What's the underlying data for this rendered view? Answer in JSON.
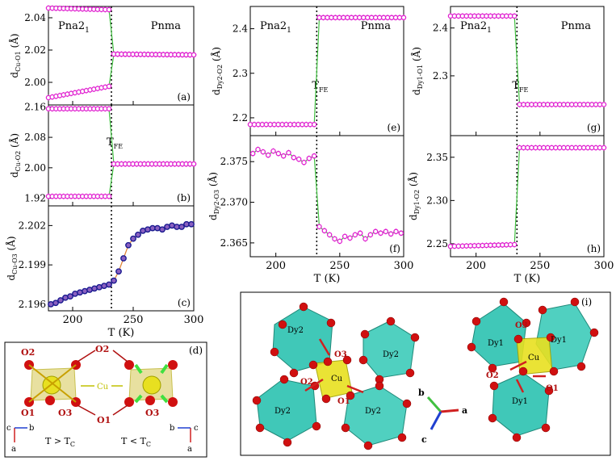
{
  "colors": {
    "magenta": "#e020d0",
    "lowOpen": "#d020c0",
    "green": "#40c040",
    "navy": "#1a1a90",
    "orange": "#e08030",
    "teal": "#40c8b8",
    "yellow": "#e8e020",
    "red": "#cc1010",
    "axis": "#000000"
  },
  "chart_data": [
    {
      "id": "a",
      "type": "scatter",
      "panel_label": "(a)",
      "ylabel_main": "d",
      "ylabel_sub": "Cu-O1",
      "ylabel_unit": " (Å)",
      "xlim": [
        180,
        300
      ],
      "ylim": [
        1.986,
        2.047
      ],
      "yticks": [
        "2.04",
        "2.02",
        "2.00"
      ],
      "ytick_values": [
        2.04,
        2.02,
        2.0
      ],
      "phase_left": "Pna2",
      "phase_left_sub": "1",
      "phase_right": "Pnma",
      "transition_T": 232,
      "series": [
        {
          "name": "upper",
          "style": "open",
          "segments": [
            {
              "x0": 180,
              "x1": 230,
              "y0": 2.046,
              "y1": 2.045
            },
            {
              "x0": 234,
              "x1": 300,
              "y0": 2.0175,
              "y1": 2.017
            }
          ]
        },
        {
          "name": "lower",
          "style": "open",
          "segments": [
            {
              "x0": 180,
              "x1": 230,
              "y0": 1.9905,
              "y1": 1.9975
            },
            {
              "x0": 234,
              "x1": 300,
              "y0": 2.0175,
              "y1": 2.017
            }
          ]
        }
      ]
    },
    {
      "id": "b",
      "type": "scatter",
      "panel_label": "(b)",
      "ylabel_main": "d",
      "ylabel_sub": "Cu-O2",
      "ylabel_unit": " (Å)",
      "xlim": [
        180,
        300
      ],
      "ylim": [
        1.9,
        2.165
      ],
      "yticks": [
        "2.16",
        "2.08",
        "2.00",
        "1.92"
      ],
      "ytick_values": [
        2.16,
        2.08,
        2.0,
        1.92
      ],
      "annotation": "T",
      "annotation_sub": "FE",
      "transition_T": 232,
      "series": [
        {
          "name": "upper",
          "style": "open",
          "segments": [
            {
              "x0": 180,
              "x1": 230,
              "y0": 2.155,
              "y1": 2.155
            },
            {
              "x0": 234,
              "x1": 300,
              "y0": 2.01,
              "y1": 2.01
            }
          ]
        },
        {
          "name": "lower",
          "style": "open",
          "segments": [
            {
              "x0": 180,
              "x1": 230,
              "y0": 1.925,
              "y1": 1.925
            },
            {
              "x0": 234,
              "x1": 300,
              "y0": 2.01,
              "y1": 2.01
            }
          ]
        }
      ]
    },
    {
      "id": "c",
      "type": "scatter",
      "panel_label": "(c)",
      "ylabel_main": "d",
      "ylabel_sub": "Cu-O3",
      "ylabel_unit": " (Å)",
      "xlabel": "T (K)",
      "xlim": [
        180,
        300
      ],
      "ylim": [
        2.1955,
        2.2035
      ],
      "yticks": [
        "2.202",
        "2.199",
        "2.196"
      ],
      "ytick_values": [
        2.202,
        2.199,
        2.196
      ],
      "xticks": [
        "200",
        "250",
        "300"
      ],
      "xtick_values": [
        200,
        250,
        300
      ],
      "transition_T": 232,
      "series": [
        {
          "name": "Cu-O3",
          "style": "dark",
          "x": [
            182,
            186,
            190,
            194,
            198,
            202,
            206,
            210,
            214,
            218,
            222,
            226,
            230,
            234,
            238,
            242,
            246,
            250,
            254,
            258,
            262,
            266,
            270,
            274,
            278,
            282,
            286,
            290,
            294,
            298
          ],
          "y": [
            2.196,
            2.1961,
            2.1963,
            2.1965,
            2.1966,
            2.1968,
            2.1969,
            2.197,
            2.1971,
            2.1972,
            2.1973,
            2.1974,
            2.1975,
            2.1978,
            2.1985,
            2.1995,
            2.2005,
            2.201,
            2.2013,
            2.2016,
            2.2017,
            2.2018,
            2.2018,
            2.2017,
            2.2019,
            2.202,
            2.2019,
            2.2019,
            2.2021,
            2.2021
          ]
        }
      ]
    },
    {
      "id": "e",
      "type": "scatter",
      "panel_label": "(e)",
      "ylabel_main": "d",
      "ylabel_sub": "Dy2-O2",
      "ylabel_unit": " (Å)",
      "xlim": [
        180,
        300
      ],
      "ylim": [
        2.16,
        2.45
      ],
      "yticks": [
        "2.4",
        "2.3",
        "2.2"
      ],
      "ytick_values": [
        2.4,
        2.3,
        2.2
      ],
      "phase_left": "Pna2",
      "phase_left_sub": "1",
      "phase_right": "Pnma",
      "annotation": "T",
      "annotation_sub": "FE",
      "transition_T": 232,
      "series": [
        {
          "name": "Dy2-O2",
          "style": "open",
          "segments": [
            {
              "x0": 180,
              "x1": 230,
              "y0": 2.185,
              "y1": 2.185
            },
            {
              "x0": 234,
              "x1": 300,
              "y0": 2.425,
              "y1": 2.425
            }
          ]
        }
      ]
    },
    {
      "id": "f",
      "type": "scatter",
      "panel_label": "(f)",
      "ylabel_main": "d",
      "ylabel_sub": "Dy2-O3",
      "ylabel_unit": " (Å)",
      "xlabel": "T (K)",
      "xlim": [
        180,
        300
      ],
      "ylim": [
        2.3633,
        2.3782
      ],
      "yticks": [
        "2.375",
        "2.370",
        "2.365"
      ],
      "ytick_values": [
        2.375,
        2.37,
        2.365
      ],
      "xticks": [
        "200",
        "250",
        "300"
      ],
      "xtick_values": [
        200,
        250,
        300
      ],
      "transition_T": 232,
      "series": [
        {
          "name": "Dy2-O3",
          "style": "open_green",
          "x": [
            182,
            186,
            190,
            194,
            198,
            202,
            206,
            210,
            214,
            218,
            222,
            226,
            230,
            234,
            238,
            242,
            246,
            250,
            254,
            258,
            262,
            266,
            270,
            274,
            278,
            282,
            286,
            290,
            294,
            298
          ],
          "y": [
            2.376,
            2.3765,
            2.3762,
            2.3758,
            2.3763,
            2.376,
            2.3757,
            2.3761,
            2.3755,
            2.3753,
            2.3749,
            2.3754,
            2.3757,
            2.367,
            2.3665,
            2.366,
            2.3655,
            2.3652,
            2.3658,
            2.3656,
            2.366,
            2.3662,
            2.3655,
            2.366,
            2.3664,
            2.3662,
            2.3664,
            2.3661,
            2.3664,
            2.3662
          ]
        }
      ]
    },
    {
      "id": "g",
      "type": "scatter",
      "panel_label": "(g)",
      "ylabel_main": "d",
      "ylabel_sub": "Dy1-O1",
      "ylabel_unit": " (Å)",
      "xlim": [
        180,
        300
      ],
      "ylim": [
        2.175,
        2.445
      ],
      "yticks": [
        "2.4",
        "2.3"
      ],
      "ytick_values": [
        2.4,
        2.3
      ],
      "phase_left": "Pna2",
      "phase_left_sub": "1",
      "phase_right": "Pnma",
      "annotation": "T",
      "annotation_sub": "FE",
      "transition_T": 232,
      "series": [
        {
          "name": "Dy1-O1",
          "style": "open",
          "segments": [
            {
              "x0": 180,
              "x1": 230,
              "y0": 2.425,
              "y1": 2.425
            },
            {
              "x0": 234,
              "x1": 300,
              "y0": 2.24,
              "y1": 2.24
            }
          ]
        }
      ]
    },
    {
      "id": "h",
      "type": "scatter",
      "panel_label": "(h)",
      "ylabel_main": "d",
      "ylabel_sub": "Dy1-O2",
      "ylabel_unit": " (Å)",
      "xlabel": "T (K)",
      "xlim": [
        180,
        300
      ],
      "ylim": [
        2.235,
        2.375
      ],
      "yticks": [
        "2.35",
        "2.30",
        "2.25"
      ],
      "ytick_values": [
        2.35,
        2.3,
        2.25
      ],
      "xticks": [
        "200",
        "250",
        "300"
      ],
      "xtick_values": [
        200,
        250,
        300
      ],
      "transition_T": 232,
      "series": [
        {
          "name": "Dy1-O2",
          "style": "open",
          "segments": [
            {
              "x0": 180,
              "x1": 230,
              "y0": 2.247,
              "y1": 2.249
            },
            {
              "x0": 234,
              "x1": 300,
              "y0": 2.361,
              "y1": 2.361
            }
          ]
        }
      ]
    }
  ],
  "diagram_d": {
    "label": "(d)",
    "left_atoms": [
      "O2",
      "O1",
      "O3"
    ],
    "left_bottom": [
      "O1",
      "O3"
    ],
    "right_atoms": [
      "O2",
      "O1",
      "O3"
    ],
    "center": "Cu",
    "axis_left": [
      "c",
      "b",
      "a"
    ],
    "axis_right": [
      "c",
      "b",
      "a"
    ],
    "cond_left": "T > T",
    "cond_left_sub": "C",
    "cond_right": "T < T",
    "cond_right_sub": "C"
  },
  "diagram_i": {
    "label": "(i)",
    "left_labels": [
      "Dy2",
      "Dy2",
      "O3",
      "Cu",
      "O2",
      "O1",
      "Dy2",
      "Dy2"
    ],
    "right_labels": [
      "O3",
      "Dy1",
      "Dy1",
      "Cu",
      "O2",
      "O1",
      "Dy1"
    ],
    "axes": [
      "b",
      "a",
      "c"
    ]
  }
}
